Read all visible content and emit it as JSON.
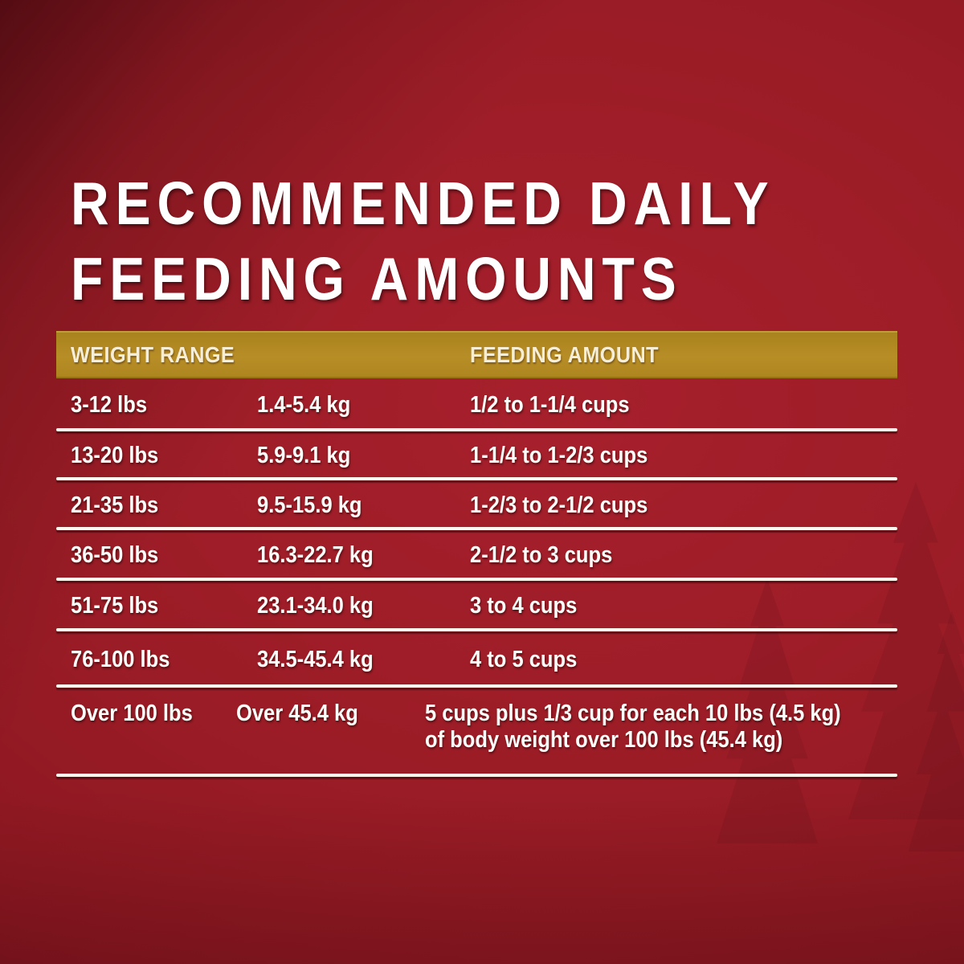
{
  "title": {
    "line1": "RECOMMENDED DAILY",
    "line2": "FEEDING AMOUNTS"
  },
  "table": {
    "header": {
      "weight_range": "WEIGHT RANGE",
      "feeding_amount": "FEEDING AMOUNT"
    },
    "rows": [
      {
        "lbs": "3-12 lbs",
        "kg": "1.4-5.4 kg",
        "amount_lines": [
          "1/2 to 1-1/4 cups"
        ]
      },
      {
        "lbs": "13-20 lbs",
        "kg": "5.9-9.1 kg",
        "amount_lines": [
          "1-1/4 to 1-2/3 cups"
        ]
      },
      {
        "lbs": "21-35 lbs",
        "kg": "9.5-15.9 kg",
        "amount_lines": [
          "1-2/3 to 2-1/2 cups"
        ]
      },
      {
        "lbs": "36-50 lbs",
        "kg": "16.3-22.7 kg",
        "amount_lines": [
          "2-1/2 to 3 cups"
        ]
      },
      {
        "lbs": "51-75 lbs",
        "kg": "23.1-34.0 kg",
        "amount_lines": [
          "3 to 4 cups"
        ]
      },
      {
        "lbs": "76-100 lbs",
        "kg": "34.5-45.4 kg",
        "amount_lines": [
          "4 to 5 cups"
        ]
      },
      {
        "lbs": "Over 100 lbs",
        "kg": "Over 45.4 kg",
        "amount_lines": [
          "5 cups plus 1/3 cup for each 10 lbs (4.5 kg)",
          "of body weight over 100 lbs (45.4 kg)"
        ]
      }
    ]
  },
  "colors": {
    "background_red": "#9B1C26",
    "background_dark_corner": "#6E0D13",
    "header_gold": "#B1871F",
    "header_text_cream": "#F6EED6",
    "body_text": "#FFFFFF",
    "divider_white": "#FFF8EE"
  },
  "chart_data": {
    "type": "table",
    "title": "RECOMMENDED DAILY FEEDING AMOUNTS",
    "columns": [
      "Weight Range (lbs)",
      "Weight Range (kg)",
      "Feeding Amount"
    ],
    "rows": [
      [
        "3-12 lbs",
        "1.4-5.4 kg",
        "1/2 to 1-1/4 cups"
      ],
      [
        "13-20 lbs",
        "5.9-9.1 kg",
        "1-1/4 to 1-2/3 cups"
      ],
      [
        "21-35 lbs",
        "9.5-15.9 kg",
        "1-2/3 to 2-1/2 cups"
      ],
      [
        "36-50 lbs",
        "16.3-22.7 kg",
        "2-1/2 to 3 cups"
      ],
      [
        "51-75 lbs",
        "23.1-34.0 kg",
        "3 to 4 cups"
      ],
      [
        "76-100 lbs",
        "34.5-45.4 kg",
        "4 to 5 cups"
      ],
      [
        "Over 100 lbs",
        "Over 45.4 kg",
        "5 cups plus 1/3 cup for each 10 lbs (4.5 kg) of body weight over 100 lbs (45.4 kg)"
      ]
    ],
    "legend_position": "none",
    "grid": "horizontal-rules"
  }
}
